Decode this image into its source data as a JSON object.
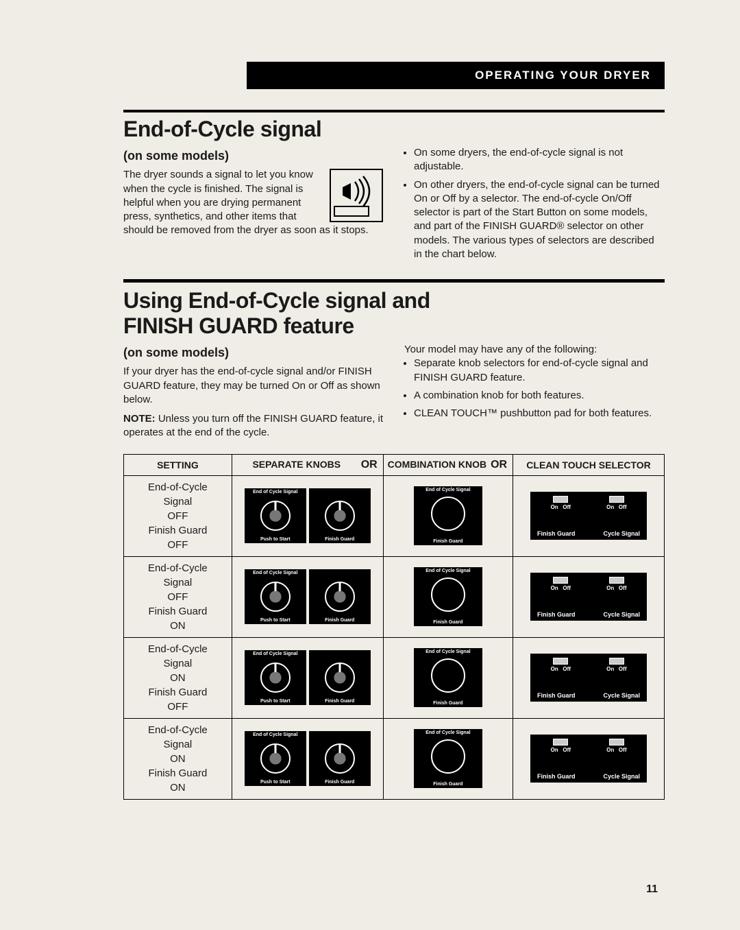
{
  "header": "OPERATING YOUR DRYER",
  "section1": {
    "title": "End-of-Cycle signal",
    "subtitle": "(on some models)",
    "left_text": "The dryer sounds a signal to let you know when the cycle is finished. The signal is helpful when you are drying permanent press, synthetics, and other items that should be removed from the dryer as soon as it stops.",
    "right_bullets": [
      "On some dryers, the end-of-cycle signal is not adjustable.",
      "On other dryers, the end-of-cycle signal can be turned On or Off by a selector. The end-of-cycle On/Off selector is part of the Start Button on some models, and part of the FINISH GUARD® selector on other models. The various types of selectors are described in the chart below."
    ]
  },
  "section2": {
    "title1": "Using End-of-Cycle signal and",
    "title2": "FINISH GUARD feature",
    "subtitle": "(on some models)",
    "left_text1": "If your dryer has the end-of-cycle signal and/or FINISH GUARD feature, they may be turned On or Off as shown below.",
    "left_text2_label": "NOTE:",
    "left_text2": " Unless you turn off the FINISH GUARD feature, it operates at the end of the cycle.",
    "right_intro": "Your model may have any of the following:",
    "right_bullets": [
      "Separate knob selectors for end-of-cycle signal and FINISH GUARD feature.",
      "A combination knob for both features.",
      "CLEAN TOUCH™ pushbutton pad for both features."
    ]
  },
  "table": {
    "headers": {
      "col1": "SETTING",
      "col2": "SEPARATE KNOBS",
      "col3": "COMBINATION KNOB",
      "col4": "CLEAN TOUCH SELECTOR",
      "or": "OR"
    },
    "rows": [
      {
        "signal": "OFF",
        "guard": "OFF",
        "ct_guard": "Off",
        "ct_signal": "Off"
      },
      {
        "signal": "OFF",
        "guard": "ON",
        "ct_guard": "Off",
        "ct_signal": "Off"
      },
      {
        "signal": "ON",
        "guard": "OFF",
        "ct_guard": "Off",
        "ct_signal": "Off"
      },
      {
        "signal": "ON",
        "guard": "ON",
        "ct_guard": "Off",
        "ct_signal": "Off"
      }
    ],
    "labels": {
      "eoc_top": "End of Cycle Signal",
      "push_start": "Push to Start",
      "finish_guard": "Finish Guard",
      "cycle_signal": "Cycle Signal",
      "eoc_line1": "End-of-Cycle",
      "eoc_line2": "Signal",
      "fg_line": "Finish Guard",
      "on": "On",
      "off": "Off"
    }
  },
  "page_number": "11"
}
